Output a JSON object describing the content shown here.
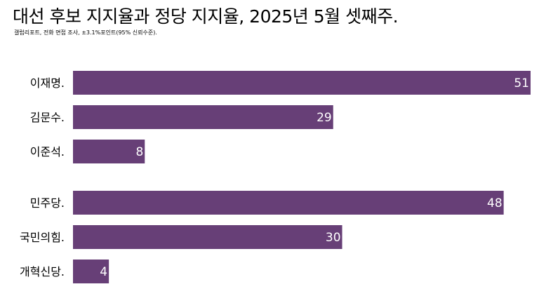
{
  "chart_data": {
    "type": "bar",
    "orientation": "horizontal",
    "title": "대선 후보 지지율과 정당 지지율, 2025년 5월 셋째주.",
    "subtitle": "갤럽리포트, 전화 면접 조사, ±3.1%포인트(95% 신뢰수준).",
    "xlim": [
      0,
      51
    ],
    "grid": false,
    "legend": "none",
    "bar_color": "#673f77",
    "value_label_color": "#ffffff",
    "groups": [
      {
        "categories": [
          "이재명.",
          "김문수.",
          "이준석."
        ],
        "values": [
          51,
          29,
          8
        ]
      },
      {
        "categories": [
          "민주당.",
          "국민의힘.",
          "개혁신당."
        ],
        "values": [
          48,
          30,
          4
        ]
      }
    ]
  }
}
